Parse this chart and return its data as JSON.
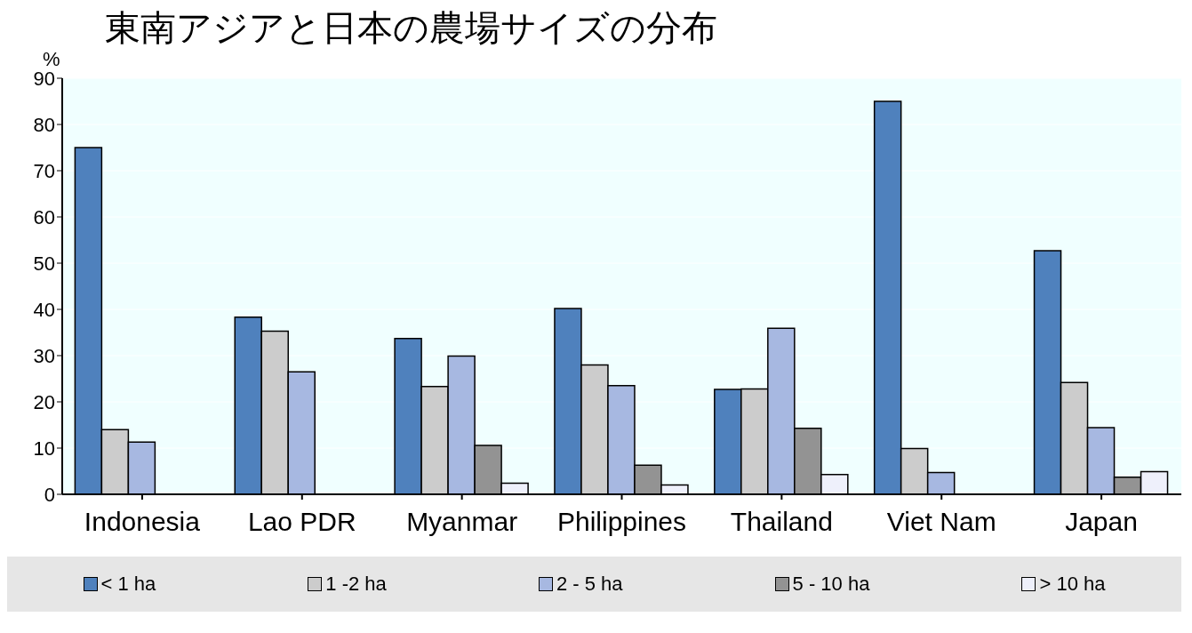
{
  "chart_data": {
    "type": "bar",
    "title": "東南アジアと日本の農場サイズの分布",
    "ylabel": "%",
    "categories": [
      "Indonesia",
      "Lao PDR",
      "Myanmar",
      "Philippines",
      "Thailand",
      "Viet Nam",
      "Japan"
    ],
    "series": [
      {
        "name": "< 1 ha",
        "color": "#4f81bd",
        "values": [
          75,
          38.3,
          33.7,
          40.2,
          22.7,
          85,
          52.7
        ]
      },
      {
        "name": "1 -2 ha",
        "color": "#cccccc",
        "values": [
          14,
          35.3,
          23.3,
          28,
          22.8,
          9.9,
          24.2
        ]
      },
      {
        "name": "2 - 5 ha",
        "color": "#a7b8e1",
        "values": [
          11.3,
          26.5,
          29.9,
          23.5,
          35.9,
          4.7,
          14.4
        ]
      },
      {
        "name": "5 - 10 ha",
        "color": "#939393",
        "values": [
          null,
          null,
          10.6,
          6.3,
          14.3,
          null,
          3.7
        ]
      },
      {
        "name": "> 10 ha",
        "color": "#eef0fb",
        "values": [
          null,
          null,
          2.4,
          2,
          4.3,
          null,
          4.9
        ]
      }
    ],
    "ylim": [
      0,
      90
    ],
    "yticks": [
      0,
      10,
      20,
      30,
      40,
      50,
      60,
      70,
      80,
      90
    ],
    "grid": "y",
    "legend": "bottom"
  }
}
